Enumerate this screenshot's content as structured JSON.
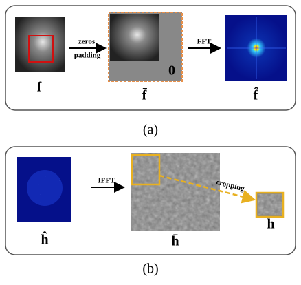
{
  "panel_a": {
    "input": {
      "label": "f"
    },
    "padding_arrow": {
      "label_1": "zeros",
      "label_2": "padding"
    },
    "padded": {
      "zero_label": "0",
      "label": "f̄"
    },
    "fft_arrow": {
      "label": "FFT"
    },
    "spectrum": {
      "label": "f̂"
    },
    "caption": "(a)"
  },
  "panel_b": {
    "spectrum": {
      "label": "ĥ"
    },
    "ifft_arrow": {
      "label": "IFFT"
    },
    "filter": {
      "label": "h̄"
    },
    "crop_arrow": {
      "label": "cropping"
    },
    "cropped": {
      "label": "h"
    },
    "caption": "(b)"
  }
}
